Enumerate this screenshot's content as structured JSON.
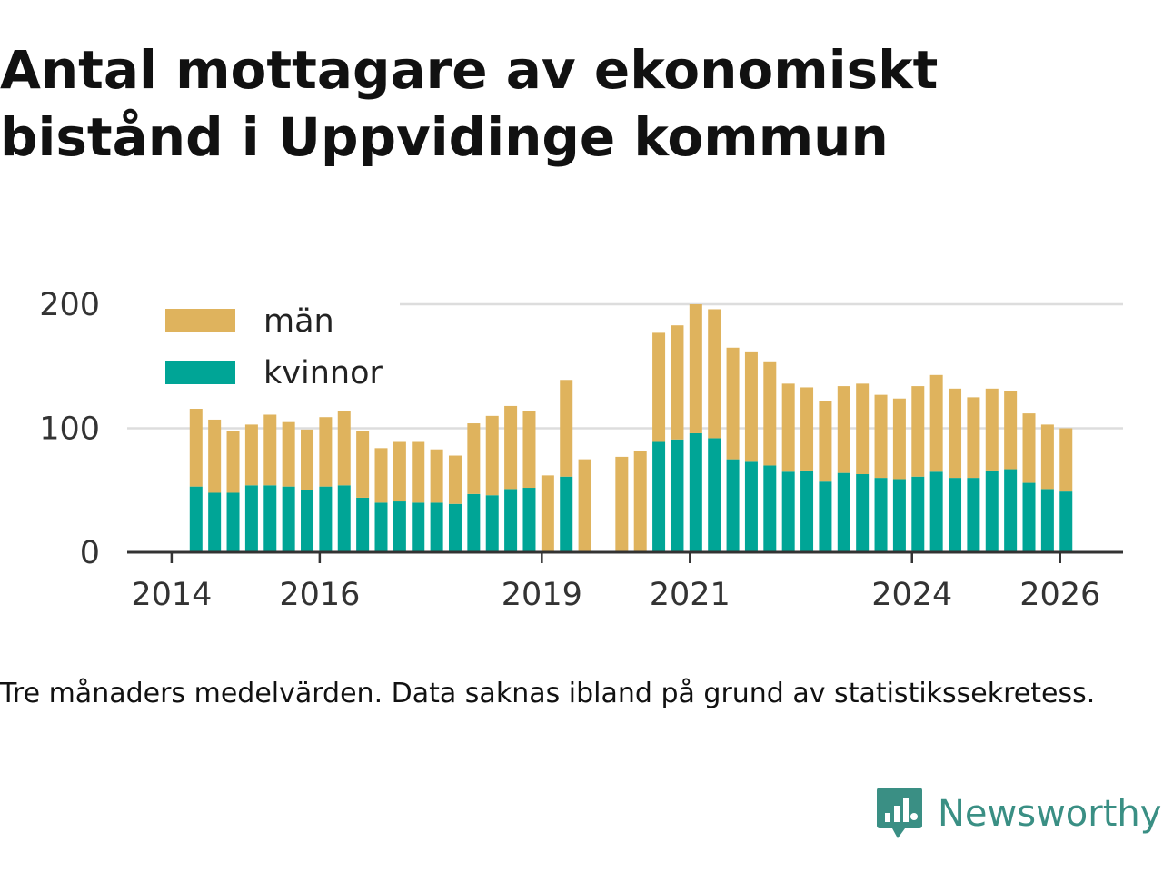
{
  "title": "Antal mottagare av ekonomiskt bistånd i Uppvidinge kommun",
  "caption": "Tre månaders medelvärden. Data saknas ibland på grund av statistikssekretess.",
  "brand": {
    "name": "Newsworthy",
    "icon": "newsworthy-logo-icon",
    "color": "#3a8f84"
  },
  "colors": {
    "man": "#dfb35d",
    "kvinnor": "#00a596",
    "grid": "#dddddd",
    "axis": "#333333"
  },
  "chart_data": {
    "type": "bar",
    "stacked": true,
    "title": "Antal mottagare av ekonomiskt bistånd i Uppvidinge kommun",
    "xlabel": "",
    "ylabel": "",
    "ylim": [
      0,
      200
    ],
    "yticks": [
      0,
      100,
      200
    ],
    "xticks": [
      {
        "label": "2014",
        "t": 2014.0
      },
      {
        "label": "2016",
        "t": 2016.0
      },
      {
        "label": "2019",
        "t": 2019.0
      },
      {
        "label": "2021",
        "t": 2021.0
      },
      {
        "label": "2024",
        "t": 2024.0
      },
      {
        "label": "2026",
        "t": 2026.0
      }
    ],
    "xlim": [
      2013.4,
      2026.85
    ],
    "legend": {
      "position": "top-left",
      "entries": [
        "män",
        "kvinnor"
      ]
    },
    "grid": true,
    "x": [
      2014.33,
      2014.58,
      2014.83,
      2015.08,
      2015.33,
      2015.58,
      2015.83,
      2016.08,
      2016.33,
      2016.58,
      2016.83,
      2017.08,
      2017.33,
      2017.58,
      2017.83,
      2018.08,
      2018.33,
      2018.58,
      2018.83,
      2019.08,
      2019.33,
      2019.58,
      2020.08,
      2020.33,
      2020.58,
      2020.83,
      2021.08,
      2021.33,
      2021.58,
      2021.83,
      2022.08,
      2022.33,
      2022.58,
      2022.83,
      2023.08,
      2023.33,
      2023.58,
      2023.83,
      2024.08,
      2024.33,
      2024.58,
      2024.83,
      2025.08,
      2025.33,
      2025.58,
      2025.83,
      2026.08,
      2026.33
    ],
    "series": [
      {
        "name": "kvinnor",
        "values": [
          53,
          48,
          48,
          54,
          54,
          53,
          50,
          53,
          54,
          44,
          40,
          41,
          40,
          40,
          39,
          47,
          46,
          51,
          52,
          null,
          61,
          null,
          null,
          null,
          89,
          91,
          96,
          92,
          75,
          73,
          70,
          65,
          66,
          57,
          64,
          63,
          60,
          59,
          61,
          65,
          60,
          60,
          66,
          67,
          56,
          51,
          49,
          null
        ]
      },
      {
        "name": "män",
        "values": [
          63,
          59,
          50,
          49,
          57,
          52,
          49,
          56,
          60,
          54,
          44,
          48,
          49,
          43,
          39,
          57,
          64,
          67,
          62,
          62,
          78,
          75,
          77,
          82,
          88,
          92,
          104,
          104,
          90,
          89,
          84,
          71,
          67,
          65,
          70,
          73,
          67,
          65,
          73,
          78,
          72,
          65,
          66,
          63,
          56,
          52,
          51,
          null
        ]
      }
    ]
  }
}
